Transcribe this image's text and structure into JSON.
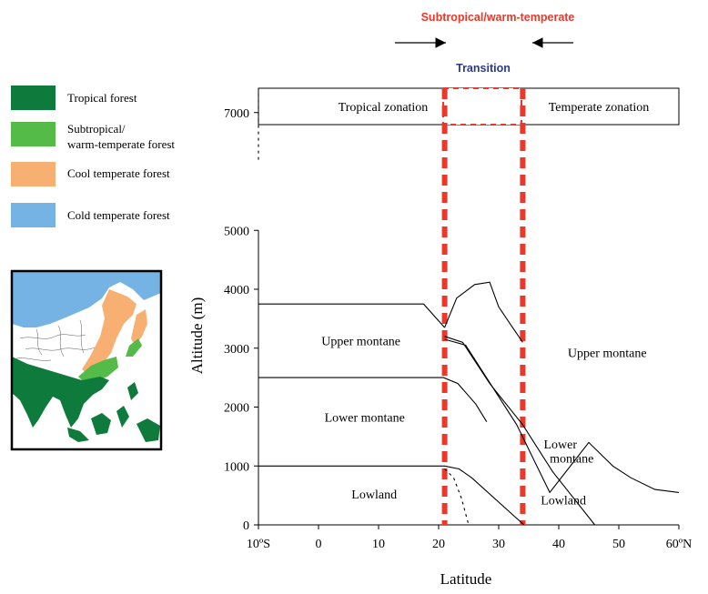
{
  "header": {
    "top_label": "Subtropical/warm-temperate",
    "transition_label": "Transition",
    "zone_left": "Tropical zonation",
    "zone_right": "Temperate zonation",
    "colors": {
      "red": "#e8392b",
      "navy": "#2b3a8c"
    }
  },
  "legend": {
    "items": [
      {
        "line1": "Tropical forest",
        "line2": "",
        "color": "#0e7a3c"
      },
      {
        "line1": "Subtropical/",
        "line2": "warm-temperate forest",
        "color": "#55bb48"
      },
      {
        "line1": "Cool temperate forest",
        "line2": "",
        "color": "#f7b072"
      },
      {
        "line1": "Cold temperate forest",
        "line2": "",
        "color": "#74b3e3"
      }
    ]
  },
  "map": {
    "icon": "east-asia-vegetation-map"
  },
  "chart_data": {
    "type": "line",
    "xlabel": "Latitude",
    "ylabel": "Altitude (m)",
    "xlim": [
      -10,
      60
    ],
    "ylim": [
      0,
      7500
    ],
    "x_ticks": [
      -10,
      0,
      10,
      20,
      30,
      40,
      50,
      60
    ],
    "x_tick_labels": [
      "10ºS",
      "0",
      "10",
      "20",
      "30",
      "40",
      "50",
      "60ºN"
    ],
    "y_ticks": [
      0,
      1000,
      2000,
      3000,
      4000,
      5000,
      7000
    ],
    "transition_lines_x": [
      21,
      34
    ],
    "series": [
      {
        "style": "solid",
        "x": [
          -10,
          17.5,
          21
        ],
        "y": [
          3750,
          3750,
          3350
        ]
      },
      {
        "style": "solid",
        "x": [
          21,
          23,
          26,
          28.5,
          30,
          32,
          34
        ],
        "y": [
          3350,
          3850,
          4080,
          4120,
          3700,
          3400,
          3100
        ]
      },
      {
        "style": "solid",
        "x": [
          21,
          24,
          28.5,
          34,
          39,
          46
        ],
        "y": [
          3200,
          3100,
          2400,
          1700,
          900,
          0
        ]
      },
      {
        "style": "solid",
        "x": [
          21,
          24.5,
          33,
          38.5,
          45,
          49,
          52,
          56,
          60
        ],
        "y": [
          3150,
          3050,
          1700,
          550,
          1400,
          1000,
          800,
          600,
          550
        ]
      },
      {
        "style": "solid",
        "x": [
          -10,
          17.5,
          20.8,
          23.2,
          26.2,
          28
        ],
        "y": [
          2500,
          2500,
          2500,
          2400,
          2050,
          1750
        ]
      },
      {
        "style": "solid",
        "x": [
          -10,
          17.5,
          21,
          23.4,
          25.5,
          34.2
        ],
        "y": [
          1000,
          1000,
          1000,
          950,
          800,
          0
        ]
      },
      {
        "style": "dotted",
        "x": [
          21,
          22.5,
          23.8,
          25
        ],
        "y": [
          950,
          800,
          450,
          0
        ]
      },
      {
        "style": "dotted",
        "x": [
          -10,
          -10
        ],
        "y": [
          6200,
          7400
        ]
      }
    ],
    "annotations": [
      {
        "text": "Upper montane",
        "x": 0.5,
        "y": 3050
      },
      {
        "text": "Upper montane",
        "x": 41.5,
        "y": 2850
      },
      {
        "text": "Lower montane",
        "x": 1,
        "y": 1750
      },
      {
        "text": "Lower",
        "x": 37.5,
        "y": 1300
      },
      {
        "text": "montane",
        "x": 38.5,
        "y": 1060
      },
      {
        "text": "Lowland",
        "x": 5.5,
        "y": 450
      },
      {
        "text": "Lowland",
        "x": 37,
        "y": 350
      }
    ]
  }
}
